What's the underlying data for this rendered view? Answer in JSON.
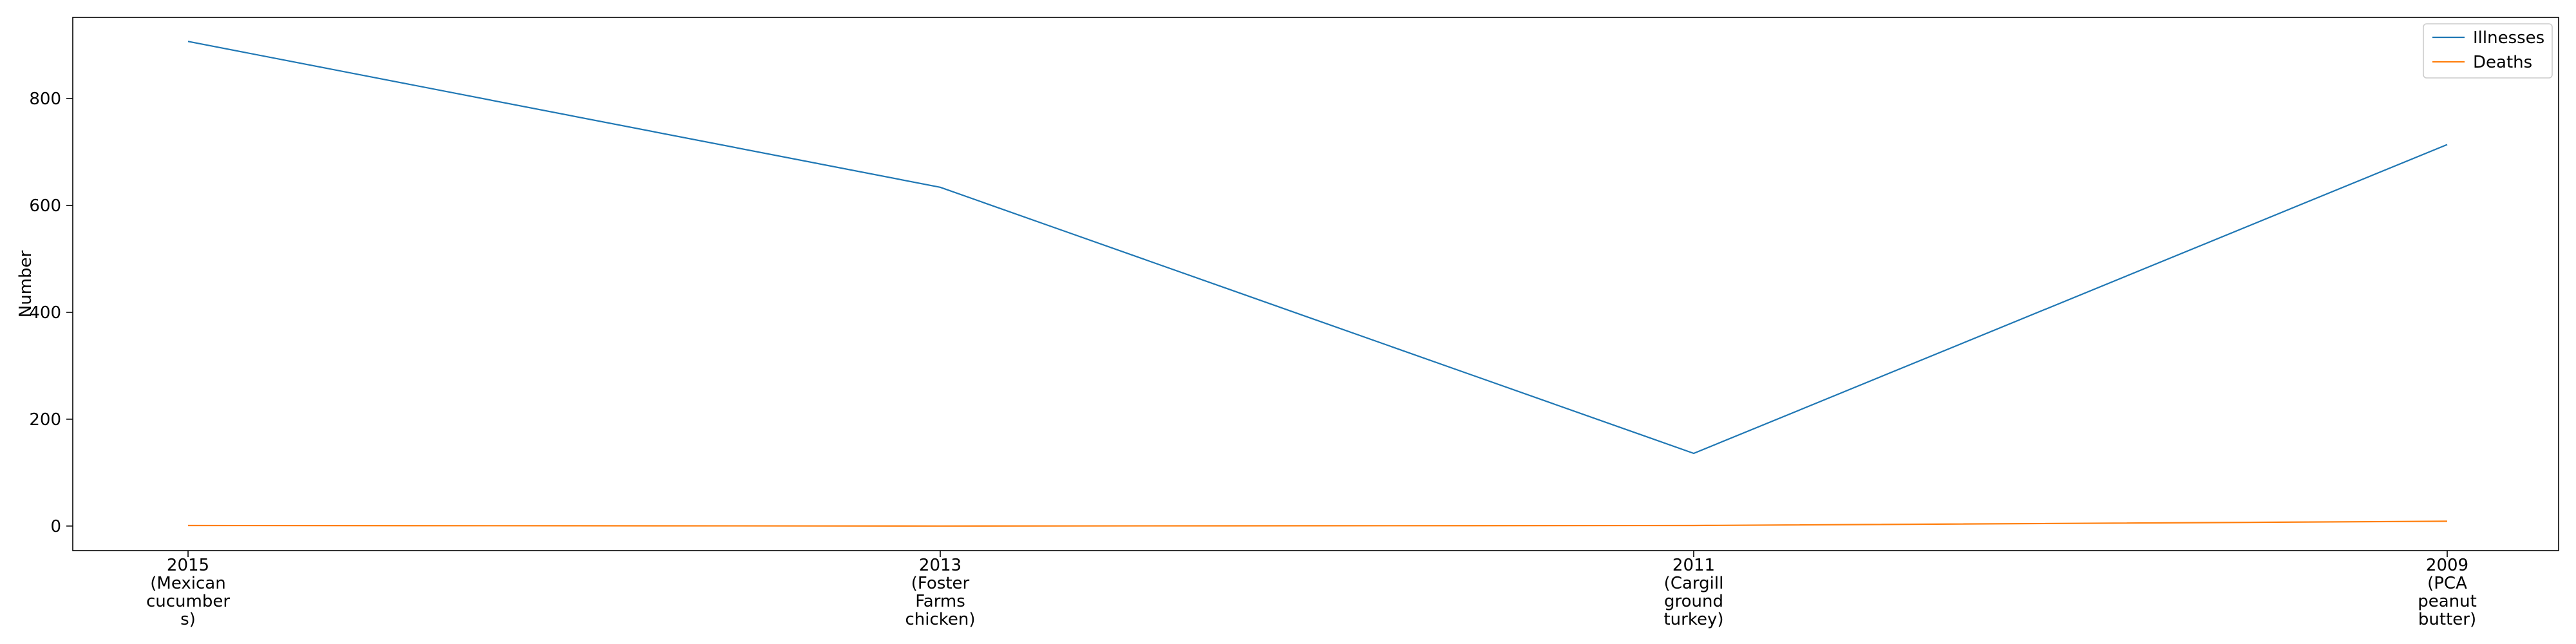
{
  "chart_data": {
    "type": "line",
    "title": "",
    "xlabel": "",
    "ylabel": "Number",
    "categories": [
      "2015\n(Mexican\ncucumber\ns)",
      "2013\n(Foster\nFarms\nchicken)",
      "2011\n(Cargill\nground\nturkey)",
      "2009\n(PCA\npeanut\nbutter)"
    ],
    "series": [
      {
        "name": "Illnesses",
        "values": [
          907,
          634,
          136,
          714
        ],
        "color": "#1f77b4"
      },
      {
        "name": "Deaths",
        "values": [
          1,
          0,
          1,
          9
        ],
        "color": "#ff7f0e"
      }
    ],
    "ylim": [
      -46,
      952
    ],
    "yticks": [
      0,
      200,
      400,
      600,
      800
    ],
    "grid": false,
    "legend_position": "top-right"
  }
}
